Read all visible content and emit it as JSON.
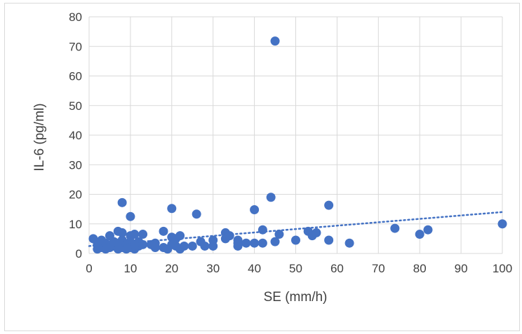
{
  "chart_data": {
    "type": "scatter",
    "title": "",
    "xlabel": "SE (mm/h)",
    "ylabel": "IL-6 (pg/ml)",
    "xlim": [
      0,
      100
    ],
    "ylim": [
      0,
      80
    ],
    "x_ticks": [
      0,
      10,
      20,
      30,
      40,
      50,
      60,
      70,
      80,
      90,
      100
    ],
    "y_ticks": [
      0,
      10,
      20,
      30,
      40,
      50,
      60,
      70,
      80
    ],
    "grid": true,
    "legend": "none",
    "colors": {
      "points": "#4472C4",
      "trendline": "#4472C4",
      "grid": "#d9d9d9",
      "text": "#404040"
    },
    "trendline": {
      "style": "dotted",
      "kind": "linear",
      "y_at_x0": 2.5,
      "y_at_x100": 14.0
    },
    "points": [
      [
        1,
        5.0
      ],
      [
        2,
        1.5
      ],
      [
        2,
        3.0
      ],
      [
        3,
        2.0
      ],
      [
        3,
        4.5
      ],
      [
        4,
        1.5
      ],
      [
        4,
        3.5
      ],
      [
        5,
        2.0
      ],
      [
        5,
        6.0
      ],
      [
        6,
        2.5
      ],
      [
        6,
        4.0
      ],
      [
        7,
        1.5
      ],
      [
        7,
        7.5
      ],
      [
        7,
        3.5
      ],
      [
        8,
        17.2
      ],
      [
        8,
        7.0
      ],
      [
        8,
        2.0
      ],
      [
        8,
        4.5
      ],
      [
        9,
        3.0
      ],
      [
        9,
        1.5
      ],
      [
        10,
        12.5
      ],
      [
        10,
        6.0
      ],
      [
        10,
        4.0
      ],
      [
        10,
        2.0
      ],
      [
        11,
        1.5
      ],
      [
        11,
        6.5
      ],
      [
        11,
        3.0
      ],
      [
        12,
        2.5
      ],
      [
        12,
        4.0
      ],
      [
        13,
        6.5
      ],
      [
        13,
        3.0
      ],
      [
        15,
        3.0
      ],
      [
        16,
        2.0
      ],
      [
        16,
        3.5
      ],
      [
        18,
        7.5
      ],
      [
        18,
        2.0
      ],
      [
        19,
        1.5
      ],
      [
        20,
        15.2
      ],
      [
        20,
        5.5
      ],
      [
        20,
        3.0
      ],
      [
        21,
        2.5
      ],
      [
        21,
        5.0
      ],
      [
        22,
        6.0
      ],
      [
        22,
        1.5
      ],
      [
        23,
        2.5
      ],
      [
        25,
        2.5
      ],
      [
        26,
        13.3
      ],
      [
        27,
        4.0
      ],
      [
        28,
        2.5
      ],
      [
        30,
        2.5
      ],
      [
        30,
        4.5
      ],
      [
        33,
        7.0
      ],
      [
        33,
        5.0
      ],
      [
        34,
        6.0
      ],
      [
        36,
        4.5
      ],
      [
        36,
        2.5
      ],
      [
        36,
        3.5
      ],
      [
        38,
        3.5
      ],
      [
        40,
        14.8
      ],
      [
        40,
        3.5
      ],
      [
        42,
        8.0
      ],
      [
        42,
        3.5
      ],
      [
        44,
        19.0
      ],
      [
        45,
        71.8
      ],
      [
        45,
        4.0
      ],
      [
        46,
        6.5
      ],
      [
        50,
        4.5
      ],
      [
        53,
        7.5
      ],
      [
        54,
        6.0
      ],
      [
        55,
        7.0
      ],
      [
        58,
        16.3
      ],
      [
        58,
        4.5
      ],
      [
        63,
        3.5
      ],
      [
        74,
        8.5
      ],
      [
        80,
        6.5
      ],
      [
        82,
        8.0
      ],
      [
        100,
        10.0
      ]
    ]
  }
}
